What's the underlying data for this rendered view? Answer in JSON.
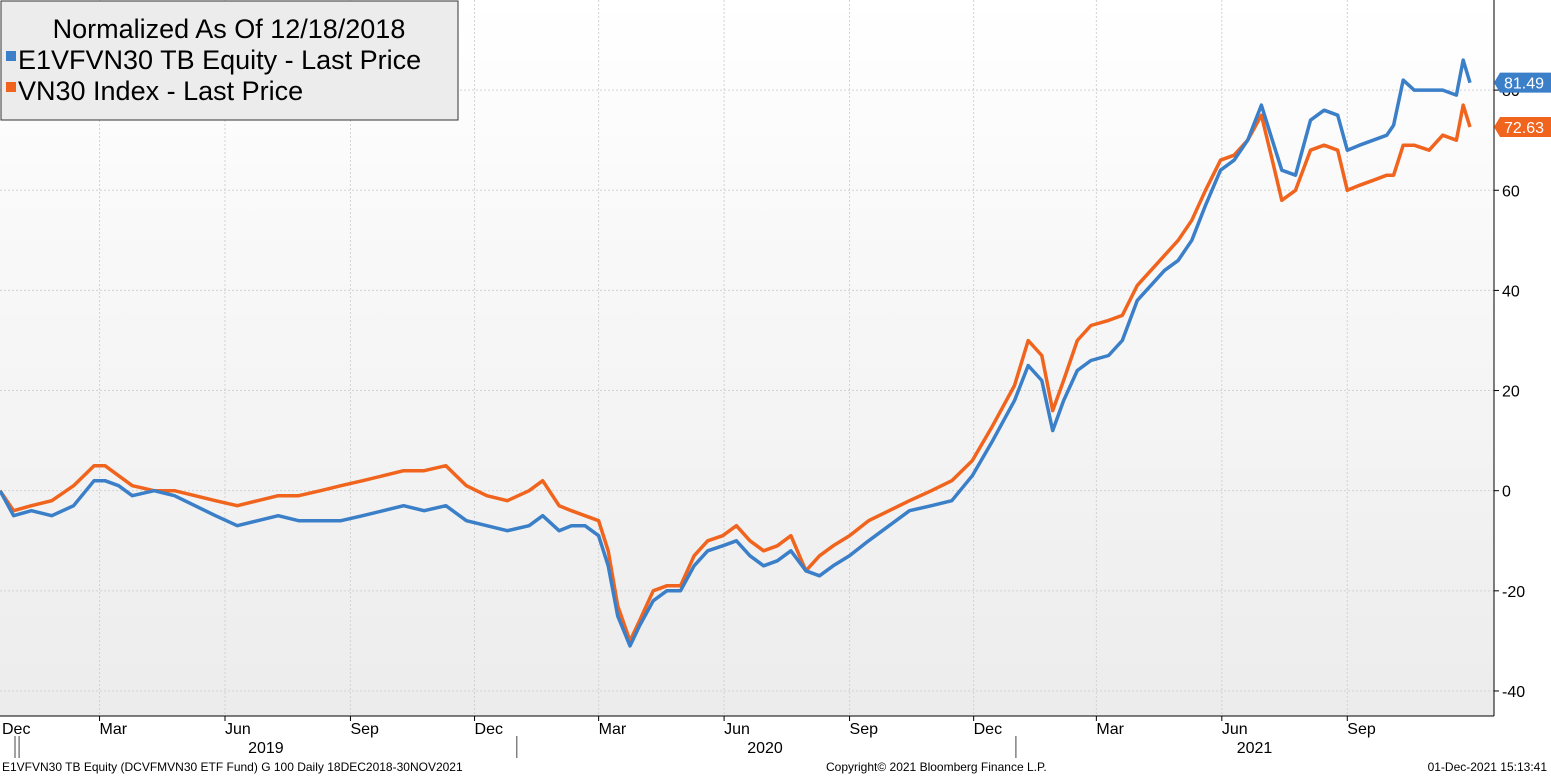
{
  "chart_data": {
    "type": "line",
    "title": "Normalized As Of 12/18/2018",
    "x_range": [
      "2018-12-18",
      "2021-11-30"
    ],
    "ylim": [
      -45,
      98
    ],
    "y_ticks": [
      -40,
      -20,
      0,
      20,
      40,
      60,
      80
    ],
    "y_tick_labels": [
      "-40",
      "-20",
      "0",
      "20",
      "40",
      "60",
      "80"
    ],
    "grid": true,
    "legend_position": "top-left",
    "month_ticks": [
      {
        "label": "Dec",
        "date": "2018-12-01"
      },
      {
        "label": "Mar",
        "date": "2019-03-01"
      },
      {
        "label": "Jun",
        "date": "2019-06-01"
      },
      {
        "label": "Sep",
        "date": "2019-09-01"
      },
      {
        "label": "Dec",
        "date": "2019-12-01"
      },
      {
        "label": "Mar",
        "date": "2020-03-01"
      },
      {
        "label": "Jun",
        "date": "2020-06-01"
      },
      {
        "label": "Sep",
        "date": "2020-09-01"
      },
      {
        "label": "Dec",
        "date": "2020-12-01"
      },
      {
        "label": "Mar",
        "date": "2021-03-01"
      },
      {
        "label": "Jun",
        "date": "2021-06-01"
      },
      {
        "label": "Sep",
        "date": "2021-09-01"
      }
    ],
    "year_labels": [
      {
        "label": "2019",
        "date": "2019-07-01"
      },
      {
        "label": "2020",
        "date": "2020-07-01"
      },
      {
        "label": "2021",
        "date": "2021-06-25"
      }
    ],
    "year_separators": [
      "2019-01-01",
      "2020-01-01",
      "2021-01-01"
    ],
    "series": [
      {
        "name": "E1VFVN30 TB Equity - Last Price",
        "color": "#3a7fc8",
        "last_value_label": "81.49",
        "points": [
          [
            "2018-12-18",
            0
          ],
          [
            "2018-12-28",
            -5
          ],
          [
            "2019-01-10",
            -4
          ],
          [
            "2019-01-25",
            -5
          ],
          [
            "2019-02-10",
            -3
          ],
          [
            "2019-02-25",
            2
          ],
          [
            "2019-03-05",
            2
          ],
          [
            "2019-03-15",
            1
          ],
          [
            "2019-03-25",
            -1
          ],
          [
            "2019-04-10",
            0
          ],
          [
            "2019-04-25",
            -1
          ],
          [
            "2019-05-10",
            -3
          ],
          [
            "2019-05-25",
            -5
          ],
          [
            "2019-06-10",
            -7
          ],
          [
            "2019-06-25",
            -6
          ],
          [
            "2019-07-10",
            -5
          ],
          [
            "2019-07-25",
            -6
          ],
          [
            "2019-08-10",
            -6
          ],
          [
            "2019-08-25",
            -6
          ],
          [
            "2019-09-10",
            -5
          ],
          [
            "2019-09-25",
            -4
          ],
          [
            "2019-10-10",
            -3
          ],
          [
            "2019-10-25",
            -4
          ],
          [
            "2019-11-10",
            -3
          ],
          [
            "2019-11-25",
            -6
          ],
          [
            "2019-12-10",
            -7
          ],
          [
            "2019-12-25",
            -8
          ],
          [
            "2020-01-10",
            -7
          ],
          [
            "2020-01-20",
            -5
          ],
          [
            "2020-02-01",
            -8
          ],
          [
            "2020-02-10",
            -7
          ],
          [
            "2020-02-20",
            -7
          ],
          [
            "2020-03-01",
            -9
          ],
          [
            "2020-03-08",
            -15
          ],
          [
            "2020-03-15",
            -25
          ],
          [
            "2020-03-24",
            -31
          ],
          [
            "2020-03-31",
            -27
          ],
          [
            "2020-04-10",
            -22
          ],
          [
            "2020-04-20",
            -20
          ],
          [
            "2020-04-30",
            -20
          ],
          [
            "2020-05-10",
            -15
          ],
          [
            "2020-05-20",
            -12
          ],
          [
            "2020-05-31",
            -11
          ],
          [
            "2020-06-10",
            -10
          ],
          [
            "2020-06-20",
            -13
          ],
          [
            "2020-06-30",
            -15
          ],
          [
            "2020-07-10",
            -14
          ],
          [
            "2020-07-20",
            -12
          ],
          [
            "2020-07-31",
            -16
          ],
          [
            "2020-08-10",
            -17
          ],
          [
            "2020-08-20",
            -15
          ],
          [
            "2020-09-01",
            -13
          ],
          [
            "2020-09-15",
            -10
          ],
          [
            "2020-09-30",
            -7
          ],
          [
            "2020-10-15",
            -4
          ],
          [
            "2020-10-31",
            -3
          ],
          [
            "2020-11-15",
            -2
          ],
          [
            "2020-11-30",
            3
          ],
          [
            "2020-12-15",
            10
          ],
          [
            "2020-12-31",
            18
          ],
          [
            "2021-01-10",
            25
          ],
          [
            "2021-01-20",
            22
          ],
          [
            "2021-01-28",
            12
          ],
          [
            "2021-02-05",
            18
          ],
          [
            "2021-02-15",
            24
          ],
          [
            "2021-02-25",
            26
          ],
          [
            "2021-03-10",
            27
          ],
          [
            "2021-03-20",
            30
          ],
          [
            "2021-03-31",
            38
          ],
          [
            "2021-04-10",
            41
          ],
          [
            "2021-04-20",
            44
          ],
          [
            "2021-04-30",
            46
          ],
          [
            "2021-05-10",
            50
          ],
          [
            "2021-05-20",
            57
          ],
          [
            "2021-05-31",
            64
          ],
          [
            "2021-06-10",
            66
          ],
          [
            "2021-06-20",
            70
          ],
          [
            "2021-06-30",
            77
          ],
          [
            "2021-07-08",
            70
          ],
          [
            "2021-07-15",
            64
          ],
          [
            "2021-07-25",
            63
          ],
          [
            "2021-08-05",
            74
          ],
          [
            "2021-08-15",
            76
          ],
          [
            "2021-08-25",
            75
          ],
          [
            "2021-09-01",
            68
          ],
          [
            "2021-09-10",
            69
          ],
          [
            "2021-09-20",
            70
          ],
          [
            "2021-09-30",
            71
          ],
          [
            "2021-10-05",
            73
          ],
          [
            "2021-10-12",
            82
          ],
          [
            "2021-10-20",
            80
          ],
          [
            "2021-10-31",
            80
          ],
          [
            "2021-11-10",
            80
          ],
          [
            "2021-11-20",
            79
          ],
          [
            "2021-11-25",
            86
          ],
          [
            "2021-11-30",
            81.49
          ]
        ]
      },
      {
        "name": "VN30 Index - Last Price",
        "color": "#f0641e",
        "last_value_label": "72.63",
        "points": [
          [
            "2018-12-18",
            0
          ],
          [
            "2018-12-28",
            -4
          ],
          [
            "2019-01-10",
            -3
          ],
          [
            "2019-01-25",
            -2
          ],
          [
            "2019-02-10",
            1
          ],
          [
            "2019-02-25",
            5
          ],
          [
            "2019-03-05",
            5
          ],
          [
            "2019-03-15",
            3
          ],
          [
            "2019-03-25",
            1
          ],
          [
            "2019-04-10",
            0
          ],
          [
            "2019-04-25",
            0
          ],
          [
            "2019-05-10",
            -1
          ],
          [
            "2019-05-25",
            -2
          ],
          [
            "2019-06-10",
            -3
          ],
          [
            "2019-06-25",
            -2
          ],
          [
            "2019-07-10",
            -1
          ],
          [
            "2019-07-25",
            -1
          ],
          [
            "2019-08-10",
            0
          ],
          [
            "2019-08-25",
            1
          ],
          [
            "2019-09-10",
            2
          ],
          [
            "2019-09-25",
            3
          ],
          [
            "2019-10-10",
            4
          ],
          [
            "2019-10-25",
            4
          ],
          [
            "2019-11-10",
            5
          ],
          [
            "2019-11-25",
            1
          ],
          [
            "2019-12-10",
            -1
          ],
          [
            "2019-12-25",
            -2
          ],
          [
            "2020-01-10",
            0
          ],
          [
            "2020-01-20",
            2
          ],
          [
            "2020-02-01",
            -3
          ],
          [
            "2020-02-10",
            -4
          ],
          [
            "2020-02-20",
            -5
          ],
          [
            "2020-03-01",
            -6
          ],
          [
            "2020-03-08",
            -12
          ],
          [
            "2020-03-15",
            -23
          ],
          [
            "2020-03-24",
            -30
          ],
          [
            "2020-03-31",
            -26
          ],
          [
            "2020-04-10",
            -20
          ],
          [
            "2020-04-20",
            -19
          ],
          [
            "2020-04-30",
            -19
          ],
          [
            "2020-05-10",
            -13
          ],
          [
            "2020-05-20",
            -10
          ],
          [
            "2020-05-31",
            -9
          ],
          [
            "2020-06-10",
            -7
          ],
          [
            "2020-06-20",
            -10
          ],
          [
            "2020-06-30",
            -12
          ],
          [
            "2020-07-10",
            -11
          ],
          [
            "2020-07-20",
            -9
          ],
          [
            "2020-07-31",
            -16
          ],
          [
            "2020-08-10",
            -13
          ],
          [
            "2020-08-20",
            -11
          ],
          [
            "2020-09-01",
            -9
          ],
          [
            "2020-09-15",
            -6
          ],
          [
            "2020-09-30",
            -4
          ],
          [
            "2020-10-15",
            -2
          ],
          [
            "2020-10-31",
            0
          ],
          [
            "2020-11-15",
            2
          ],
          [
            "2020-11-30",
            6
          ],
          [
            "2020-12-15",
            13
          ],
          [
            "2020-12-31",
            21
          ],
          [
            "2021-01-10",
            30
          ],
          [
            "2021-01-20",
            27
          ],
          [
            "2021-01-28",
            16
          ],
          [
            "2021-02-05",
            22
          ],
          [
            "2021-02-15",
            30
          ],
          [
            "2021-02-25",
            33
          ],
          [
            "2021-03-10",
            34
          ],
          [
            "2021-03-20",
            35
          ],
          [
            "2021-03-31",
            41
          ],
          [
            "2021-04-10",
            44
          ],
          [
            "2021-04-20",
            47
          ],
          [
            "2021-04-30",
            50
          ],
          [
            "2021-05-10",
            54
          ],
          [
            "2021-05-20",
            60
          ],
          [
            "2021-05-31",
            66
          ],
          [
            "2021-06-10",
            67
          ],
          [
            "2021-06-20",
            70
          ],
          [
            "2021-06-30",
            75
          ],
          [
            "2021-07-08",
            66
          ],
          [
            "2021-07-15",
            58
          ],
          [
            "2021-07-25",
            60
          ],
          [
            "2021-08-05",
            68
          ],
          [
            "2021-08-15",
            69
          ],
          [
            "2021-08-25",
            68
          ],
          [
            "2021-09-01",
            60
          ],
          [
            "2021-09-10",
            61
          ],
          [
            "2021-09-20",
            62
          ],
          [
            "2021-09-30",
            63
          ],
          [
            "2021-10-05",
            63
          ],
          [
            "2021-10-12",
            69
          ],
          [
            "2021-10-20",
            69
          ],
          [
            "2021-10-31",
            68
          ],
          [
            "2021-11-10",
            71
          ],
          [
            "2021-11-20",
            70
          ],
          [
            "2021-11-25",
            77
          ],
          [
            "2021-11-30",
            72.63
          ]
        ]
      }
    ]
  },
  "footer": {
    "left": "E1VFVN30 TB Equity (DCVFMVN30 ETF Fund) G 100  Daily 18DEC2018-30NOV2021",
    "center": "Copyright© 2021 Bloomberg Finance L.P.",
    "right": "01-Dec-2021 15:13:41"
  }
}
